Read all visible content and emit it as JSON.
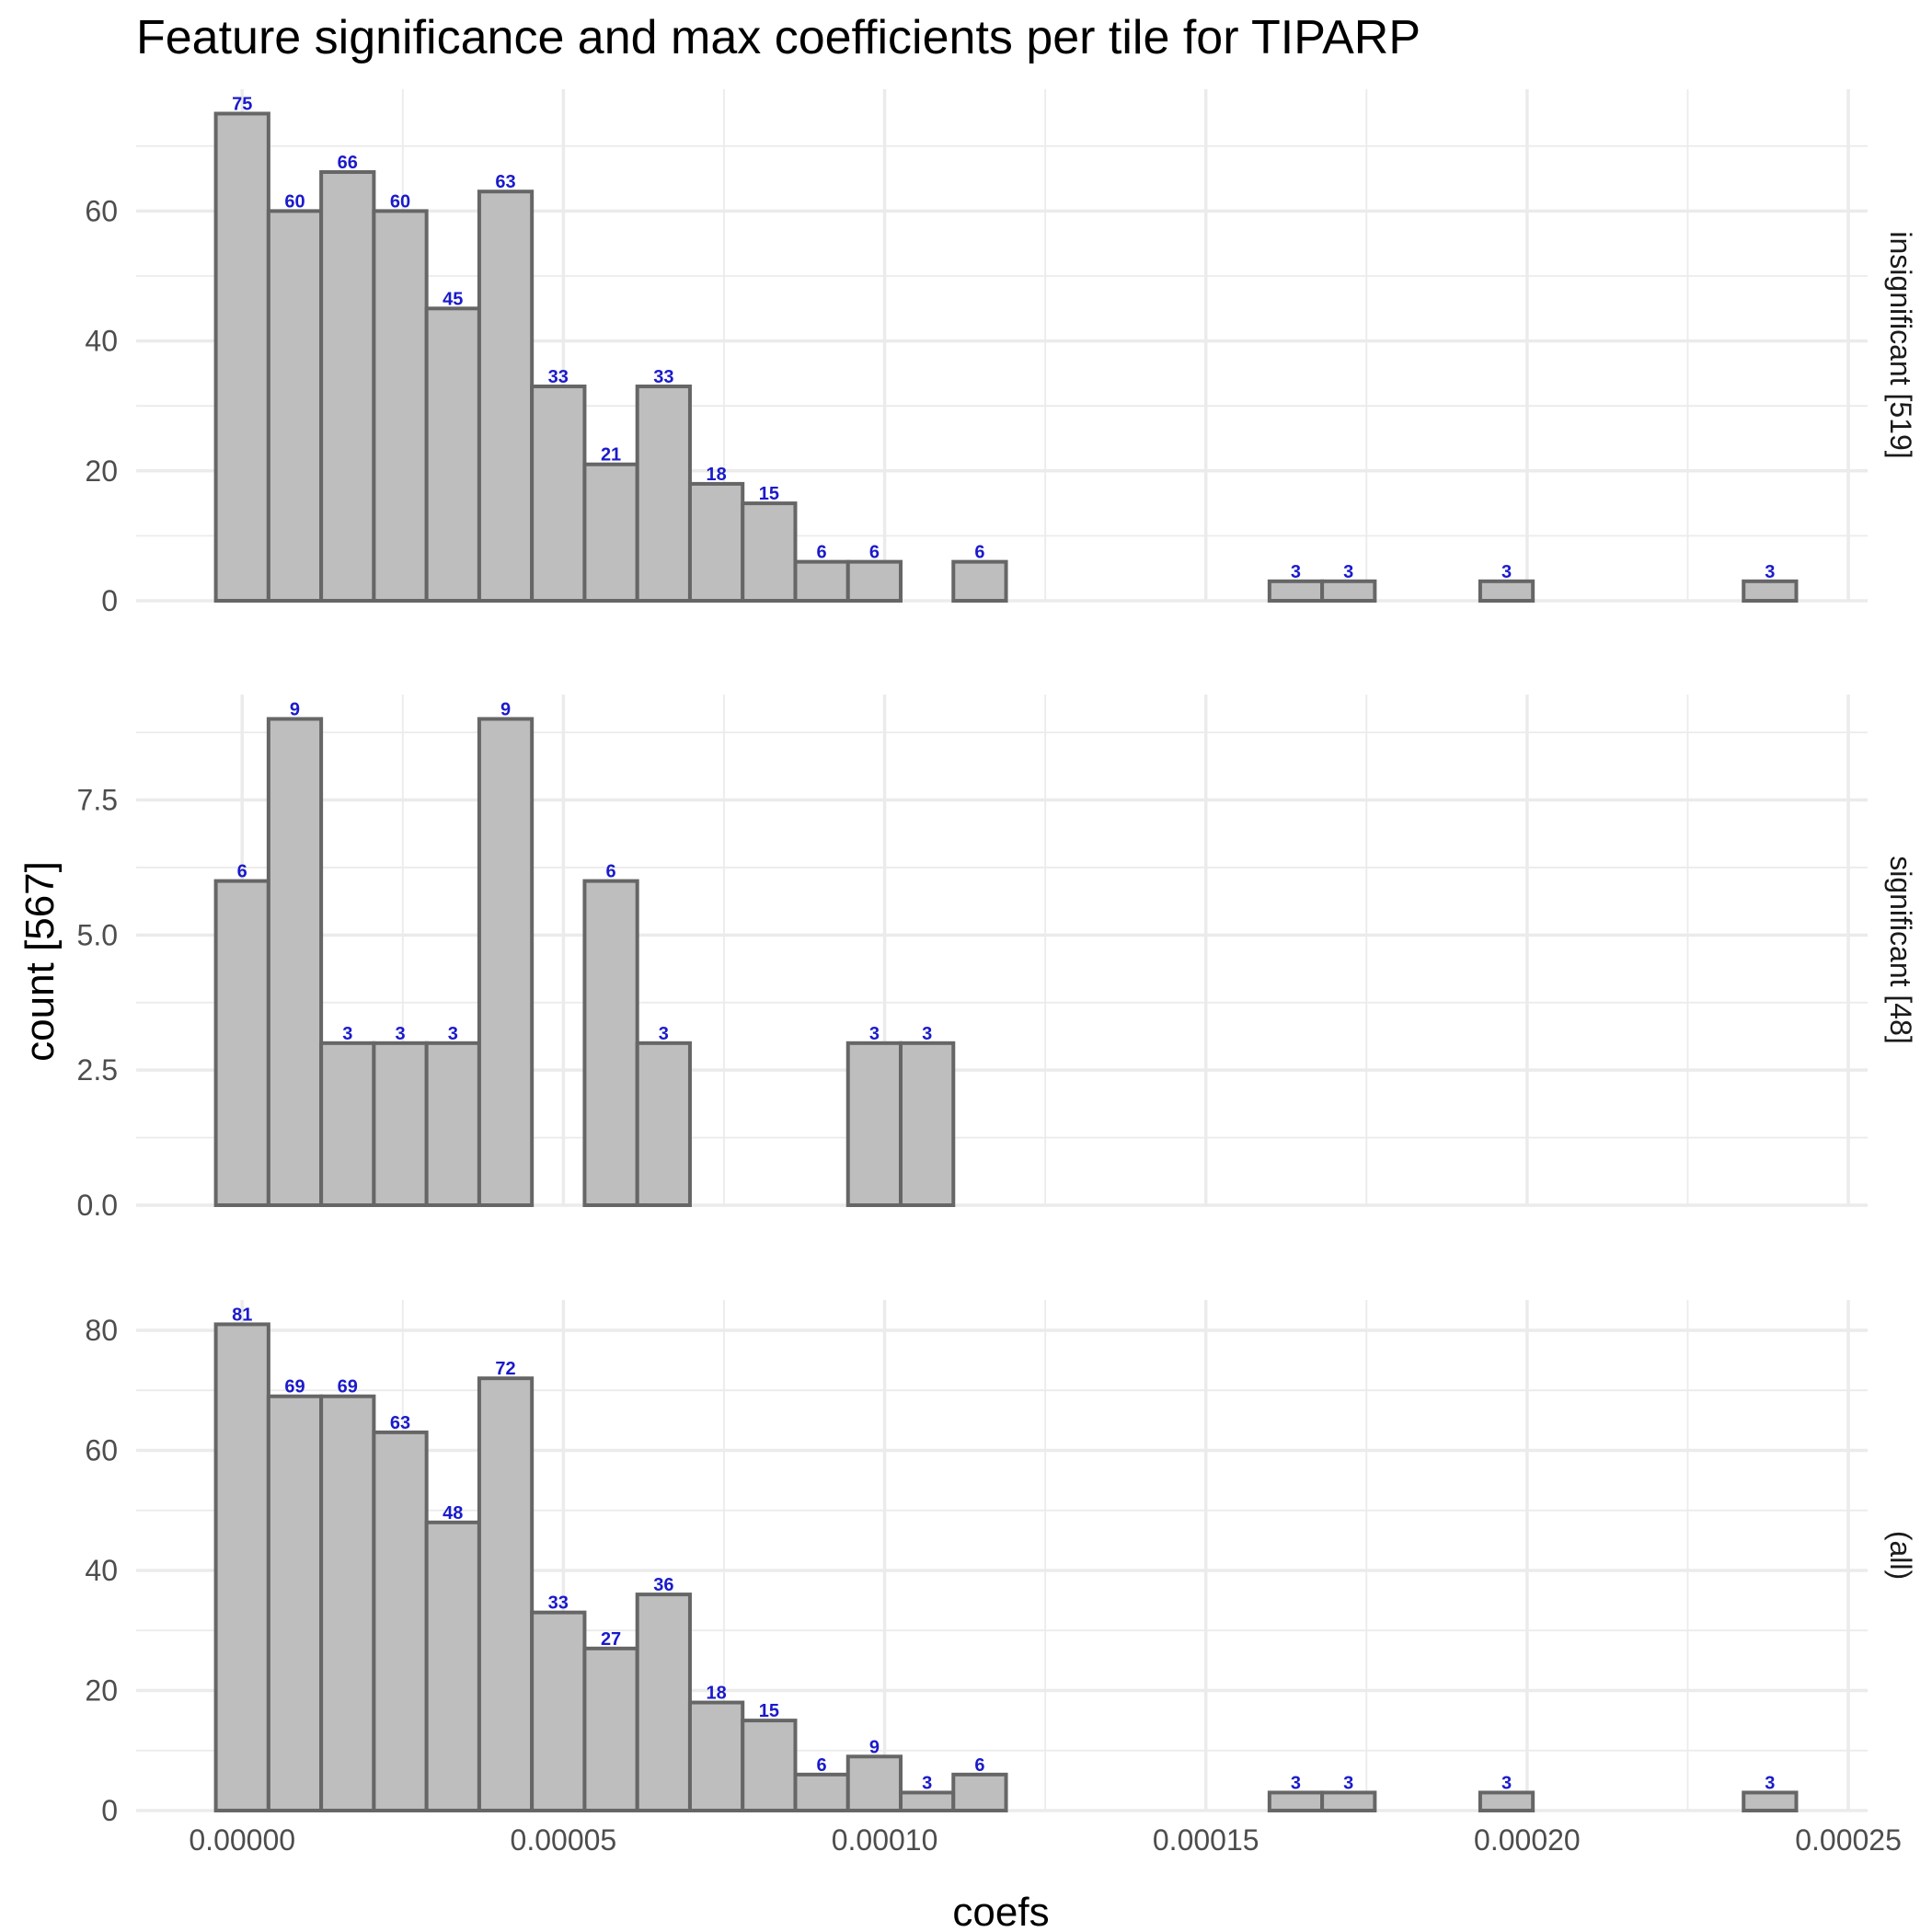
{
  "chart_data": {
    "type": "bar",
    "title": "Feature significance and max coefficients per tile for TIPARP",
    "xlabel": "coefs",
    "ylabel": "count [567]",
    "xlim": [
      -1.65e-05,
      0.000253
    ],
    "x_ticks": [
      "0.00000",
      "0.00005",
      "0.00010",
      "0.00015",
      "0.00020",
      "0.00025"
    ],
    "x_tick_values": [
      0,
      5e-05,
      0.0001,
      0.00015,
      0.0002,
      0.00025
    ],
    "bin_width": 8.2e-06,
    "bin_centers": [
      0,
      8.2e-06,
      1.64e-05,
      2.46e-05,
      3.28e-05,
      4.1e-05,
      4.92e-05,
      5.74e-05,
      6.56e-05,
      7.38e-05,
      8.2e-05,
      9.02e-05,
      9.84e-05,
      0.0001066,
      0.0001148,
      0.000123,
      0.0001312,
      0.0001394,
      0.0001476,
      0.0001558,
      0.000164,
      0.0001722,
      0.0001804,
      0.0001886,
      0.0001968,
      0.000205,
      0.0002132,
      0.0002214,
      0.0002296,
      0.0002378
    ],
    "bar_fill": "#bebebe",
    "bar_stroke": "#666666",
    "label_color": "#1a1acc",
    "grid": true,
    "legend": "none",
    "panels": [
      {
        "strip": "insignificant [519]",
        "ylim": [
          0,
          78.75
        ],
        "y_ticks": [
          0,
          20,
          40,
          60
        ],
        "y_tick_labels": [
          "0",
          "20",
          "40",
          "60"
        ],
        "counts": [
          75,
          60,
          66,
          60,
          45,
          63,
          33,
          21,
          33,
          18,
          15,
          6,
          6,
          0,
          6,
          0,
          0,
          0,
          0,
          0,
          3,
          3,
          0,
          0,
          3,
          0,
          0,
          0,
          0,
          3
        ],
        "labels": [
          "75",
          "60",
          "66",
          "60",
          "45",
          "63",
          "33",
          "21",
          "33",
          "18",
          "15",
          "6",
          "6",
          "",
          "6",
          "",
          "",
          "",
          "",
          "",
          "3",
          "3",
          "",
          "",
          "3",
          "",
          "",
          "",
          "",
          "3"
        ]
      },
      {
        "strip": "significant [48]",
        "ylim": [
          0,
          9.45
        ],
        "y_ticks": [
          0,
          2.5,
          5,
          7.5
        ],
        "y_tick_labels": [
          "0.0",
          "2.5",
          "5.0",
          "7.5"
        ],
        "counts": [
          6,
          9,
          3,
          3,
          3,
          9,
          0,
          6,
          3,
          0,
          0,
          0,
          3,
          3,
          0,
          0,
          0,
          0,
          0,
          0,
          0,
          0,
          0,
          0,
          0,
          0,
          0,
          0,
          0,
          0
        ],
        "labels": [
          "6",
          "9",
          "3",
          "3",
          "3",
          "9",
          "",
          "6",
          "3",
          "",
          "",
          "",
          "3",
          "3",
          "",
          "",
          "",
          "",
          "",
          "",
          "",
          "",
          "",
          "",
          "",
          "",
          "",
          "",
          "",
          ""
        ]
      },
      {
        "strip": "(all)",
        "ylim": [
          0,
          85.05
        ],
        "y_ticks": [
          0,
          20,
          40,
          60,
          80
        ],
        "y_tick_labels": [
          "0",
          "20",
          "40",
          "60",
          "80"
        ],
        "counts": [
          81,
          69,
          69,
          63,
          48,
          72,
          33,
          27,
          36,
          18,
          15,
          6,
          9,
          3,
          6,
          0,
          0,
          0,
          0,
          0,
          3,
          3,
          0,
          0,
          3,
          0,
          0,
          0,
          0,
          3
        ],
        "labels": [
          "81",
          "69",
          "69",
          "63",
          "48",
          "72",
          "33",
          "27",
          "36",
          "18",
          "15",
          "6",
          "9",
          "3",
          "6",
          "",
          "",
          "",
          "",
          "",
          "3",
          "3",
          "",
          "",
          "3",
          "",
          "",
          "",
          "",
          "3"
        ]
      }
    ]
  }
}
